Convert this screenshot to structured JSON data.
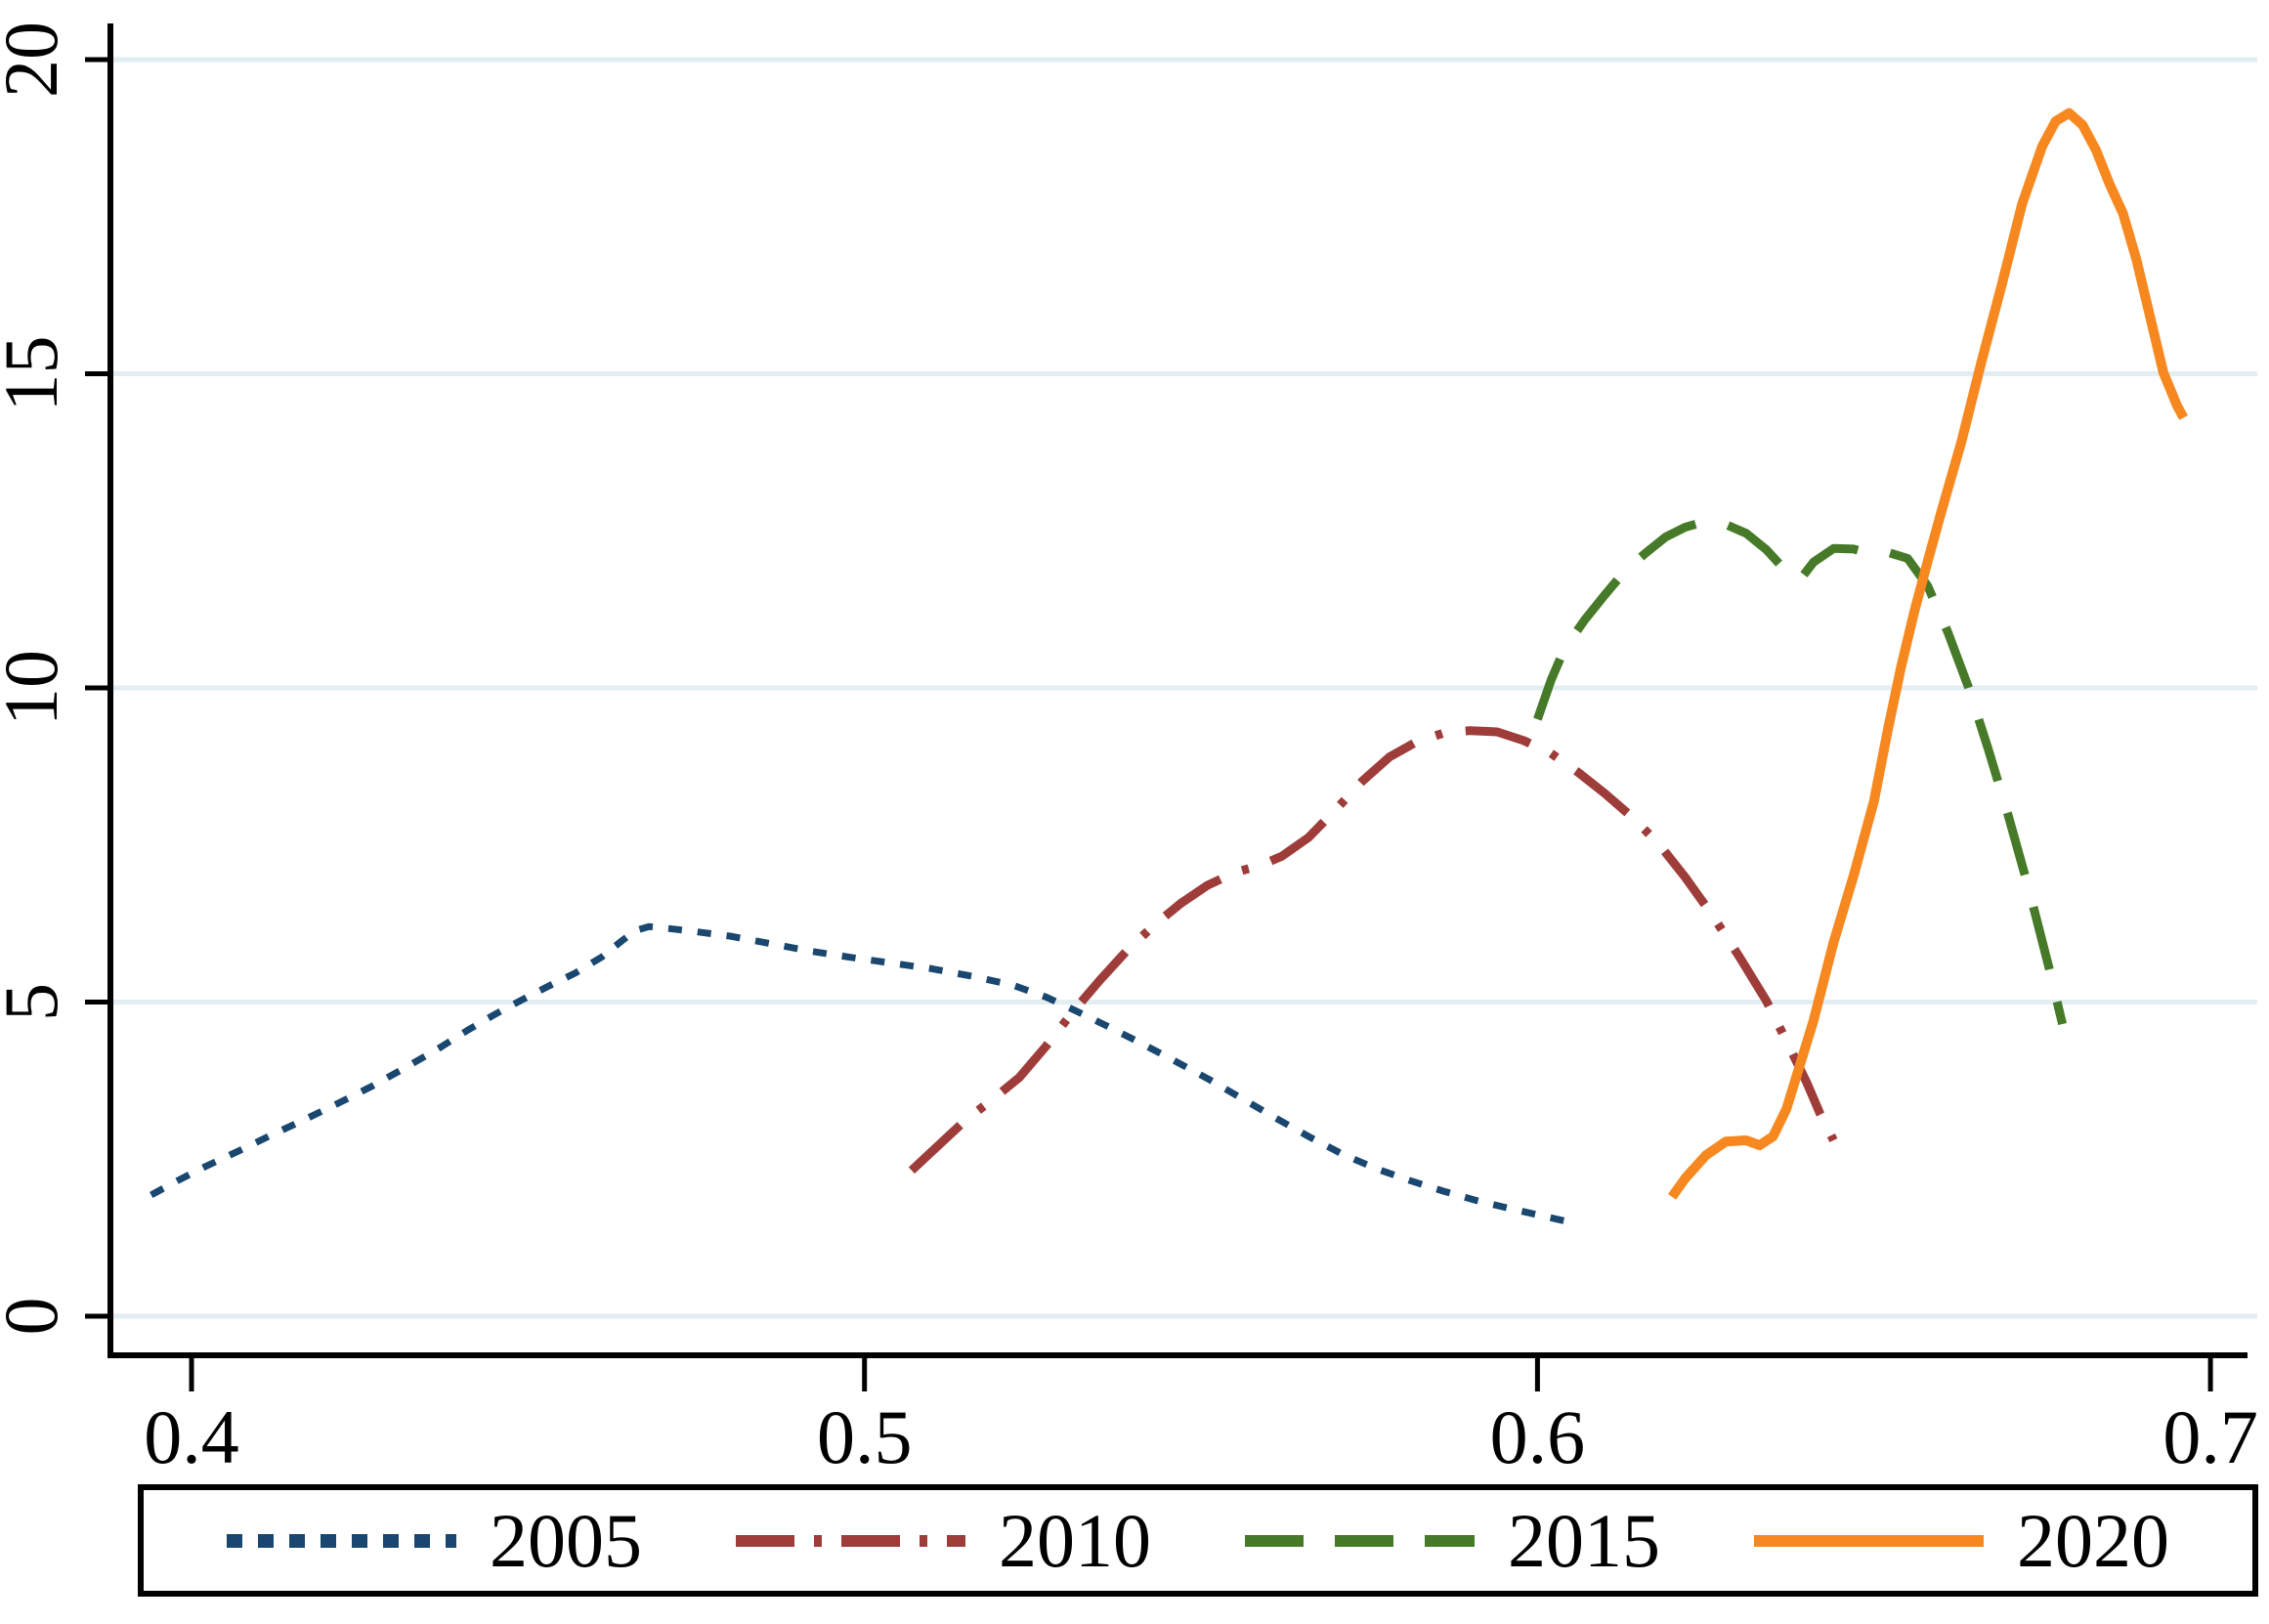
{
  "figure": {
    "background": "#ffffff",
    "axis_color": "#000000",
    "grid_color": "#e3eef2"
  },
  "chart_data": {
    "type": "line",
    "title": "",
    "xlabel": "",
    "ylabel": "",
    "xlim": [
      0.388,
      0.707
    ],
    "ylim": [
      -0.62,
      20.58
    ],
    "x_ticks": [
      0.4,
      0.5,
      0.6,
      0.7
    ],
    "x_tick_labels": [
      "0.4",
      "0.5",
      "0.6",
      "0.7"
    ],
    "y_ticks": [
      0,
      5,
      10,
      15,
      20
    ],
    "y_tick_labels": [
      "0",
      "5",
      "10",
      "15",
      "20"
    ],
    "grid": "horizontal",
    "legend_position": "bottom",
    "series": [
      {
        "name": "2005",
        "color": "#1a476f",
        "dash": "short-dash",
        "points": [
          [
            0.394,
            1.93
          ],
          [
            0.398,
            2.16
          ],
          [
            0.402,
            2.38
          ],
          [
            0.407,
            2.63
          ],
          [
            0.412,
            2.89
          ],
          [
            0.417,
            3.14
          ],
          [
            0.422,
            3.4
          ],
          [
            0.427,
            3.67
          ],
          [
            0.432,
            3.97
          ],
          [
            0.437,
            4.28
          ],
          [
            0.441,
            4.55
          ],
          [
            0.445,
            4.8
          ],
          [
            0.449,
            5.03
          ],
          [
            0.453,
            5.25
          ],
          [
            0.457,
            5.46
          ],
          [
            0.461,
            5.72
          ],
          [
            0.464,
            5.98
          ],
          [
            0.466,
            6.14
          ],
          [
            0.468,
            6.2
          ],
          [
            0.471,
            6.17
          ],
          [
            0.475,
            6.12
          ],
          [
            0.48,
            6.05
          ],
          [
            0.486,
            5.93
          ],
          [
            0.492,
            5.81
          ],
          [
            0.498,
            5.71
          ],
          [
            0.504,
            5.62
          ],
          [
            0.51,
            5.53
          ],
          [
            0.516,
            5.41
          ],
          [
            0.522,
            5.27
          ],
          [
            0.527,
            5.08
          ],
          [
            0.531,
            4.88
          ],
          [
            0.536,
            4.62
          ],
          [
            0.541,
            4.35
          ],
          [
            0.546,
            4.07
          ],
          [
            0.551,
            3.78
          ],
          [
            0.556,
            3.47
          ],
          [
            0.561,
            3.16
          ],
          [
            0.566,
            2.86
          ],
          [
            0.571,
            2.58
          ],
          [
            0.576,
            2.35
          ],
          [
            0.581,
            2.16
          ],
          [
            0.586,
            1.99
          ],
          [
            0.591,
            1.84
          ],
          [
            0.596,
            1.71
          ],
          [
            0.601,
            1.59
          ],
          [
            0.606,
            1.47
          ]
        ]
      },
      {
        "name": "2010",
        "color": "#9e3c39",
        "dash": "dash-dot",
        "points": [
          [
            0.507,
            2.32
          ],
          [
            0.511,
            2.72
          ],
          [
            0.515,
            3.12
          ],
          [
            0.519,
            3.45
          ],
          [
            0.523,
            3.8
          ],
          [
            0.527,
            4.3
          ],
          [
            0.531,
            4.85
          ],
          [
            0.535,
            5.35
          ],
          [
            0.539,
            5.82
          ],
          [
            0.543,
            6.22
          ],
          [
            0.547,
            6.57
          ],
          [
            0.551,
            6.86
          ],
          [
            0.555,
            7.06
          ],
          [
            0.559,
            7.18
          ],
          [
            0.562,
            7.32
          ],
          [
            0.566,
            7.62
          ],
          [
            0.57,
            8.06
          ],
          [
            0.574,
            8.52
          ],
          [
            0.578,
            8.9
          ],
          [
            0.582,
            9.14
          ],
          [
            0.586,
            9.28
          ],
          [
            0.59,
            9.32
          ],
          [
            0.594,
            9.3
          ],
          [
            0.598,
            9.16
          ],
          [
            0.602,
            8.96
          ],
          [
            0.606,
            8.66
          ],
          [
            0.61,
            8.32
          ],
          [
            0.614,
            7.95
          ],
          [
            0.618,
            7.52
          ],
          [
            0.622,
            6.98
          ],
          [
            0.626,
            6.38
          ],
          [
            0.63,
            5.72
          ],
          [
            0.634,
            5.02
          ],
          [
            0.637,
            4.38
          ],
          [
            0.64,
            3.72
          ],
          [
            0.642,
            3.22
          ],
          [
            0.644,
            2.8
          ]
        ]
      },
      {
        "name": "2015",
        "color": "#467a28",
        "dash": "long-dash",
        "points": [
          [
            0.6,
            9.5
          ],
          [
            0.602,
            10.12
          ],
          [
            0.604,
            10.62
          ],
          [
            0.607,
            11.08
          ],
          [
            0.61,
            11.48
          ],
          [
            0.613,
            11.86
          ],
          [
            0.616,
            12.14
          ],
          [
            0.619,
            12.4
          ],
          [
            0.622,
            12.56
          ],
          [
            0.625,
            12.65
          ],
          [
            0.628,
            12.6
          ],
          [
            0.631,
            12.46
          ],
          [
            0.634,
            12.2
          ],
          [
            0.637,
            11.85
          ],
          [
            0.639,
            11.72
          ],
          [
            0.641,
            12.0
          ],
          [
            0.644,
            12.22
          ],
          [
            0.647,
            12.21
          ],
          [
            0.65,
            12.12
          ],
          [
            0.652,
            12.16
          ],
          [
            0.655,
            12.06
          ],
          [
            0.658,
            11.62
          ],
          [
            0.661,
            10.88
          ],
          [
            0.664,
            10.02
          ],
          [
            0.667,
            9.02
          ],
          [
            0.67,
            7.95
          ],
          [
            0.673,
            6.8
          ],
          [
            0.676,
            5.55
          ],
          [
            0.678,
            4.65
          ]
        ]
      },
      {
        "name": "2020",
        "color": "#f6881f",
        "dash": "solid",
        "points": [
          [
            0.62,
            1.9
          ],
          [
            0.622,
            2.2
          ],
          [
            0.625,
            2.56
          ],
          [
            0.628,
            2.78
          ],
          [
            0.631,
            2.8
          ],
          [
            0.633,
            2.72
          ],
          [
            0.635,
            2.86
          ],
          [
            0.637,
            3.3
          ],
          [
            0.639,
            4.0
          ],
          [
            0.641,
            4.7
          ],
          [
            0.644,
            5.95
          ],
          [
            0.647,
            7.02
          ],
          [
            0.65,
            8.2
          ],
          [
            0.652,
            9.3
          ],
          [
            0.654,
            10.32
          ],
          [
            0.656,
            11.22
          ],
          [
            0.658,
            12.02
          ],
          [
            0.66,
            12.8
          ],
          [
            0.663,
            13.92
          ],
          [
            0.666,
            15.2
          ],
          [
            0.669,
            16.42
          ],
          [
            0.672,
            17.7
          ],
          [
            0.675,
            18.62
          ],
          [
            0.677,
            19.02
          ],
          [
            0.679,
            19.15
          ],
          [
            0.681,
            18.96
          ],
          [
            0.683,
            18.56
          ],
          [
            0.685,
            18.02
          ],
          [
            0.687,
            17.55
          ],
          [
            0.689,
            16.82
          ],
          [
            0.691,
            15.92
          ],
          [
            0.693,
            15.02
          ],
          [
            0.695,
            14.5
          ],
          [
            0.696,
            14.3
          ]
        ]
      }
    ]
  }
}
